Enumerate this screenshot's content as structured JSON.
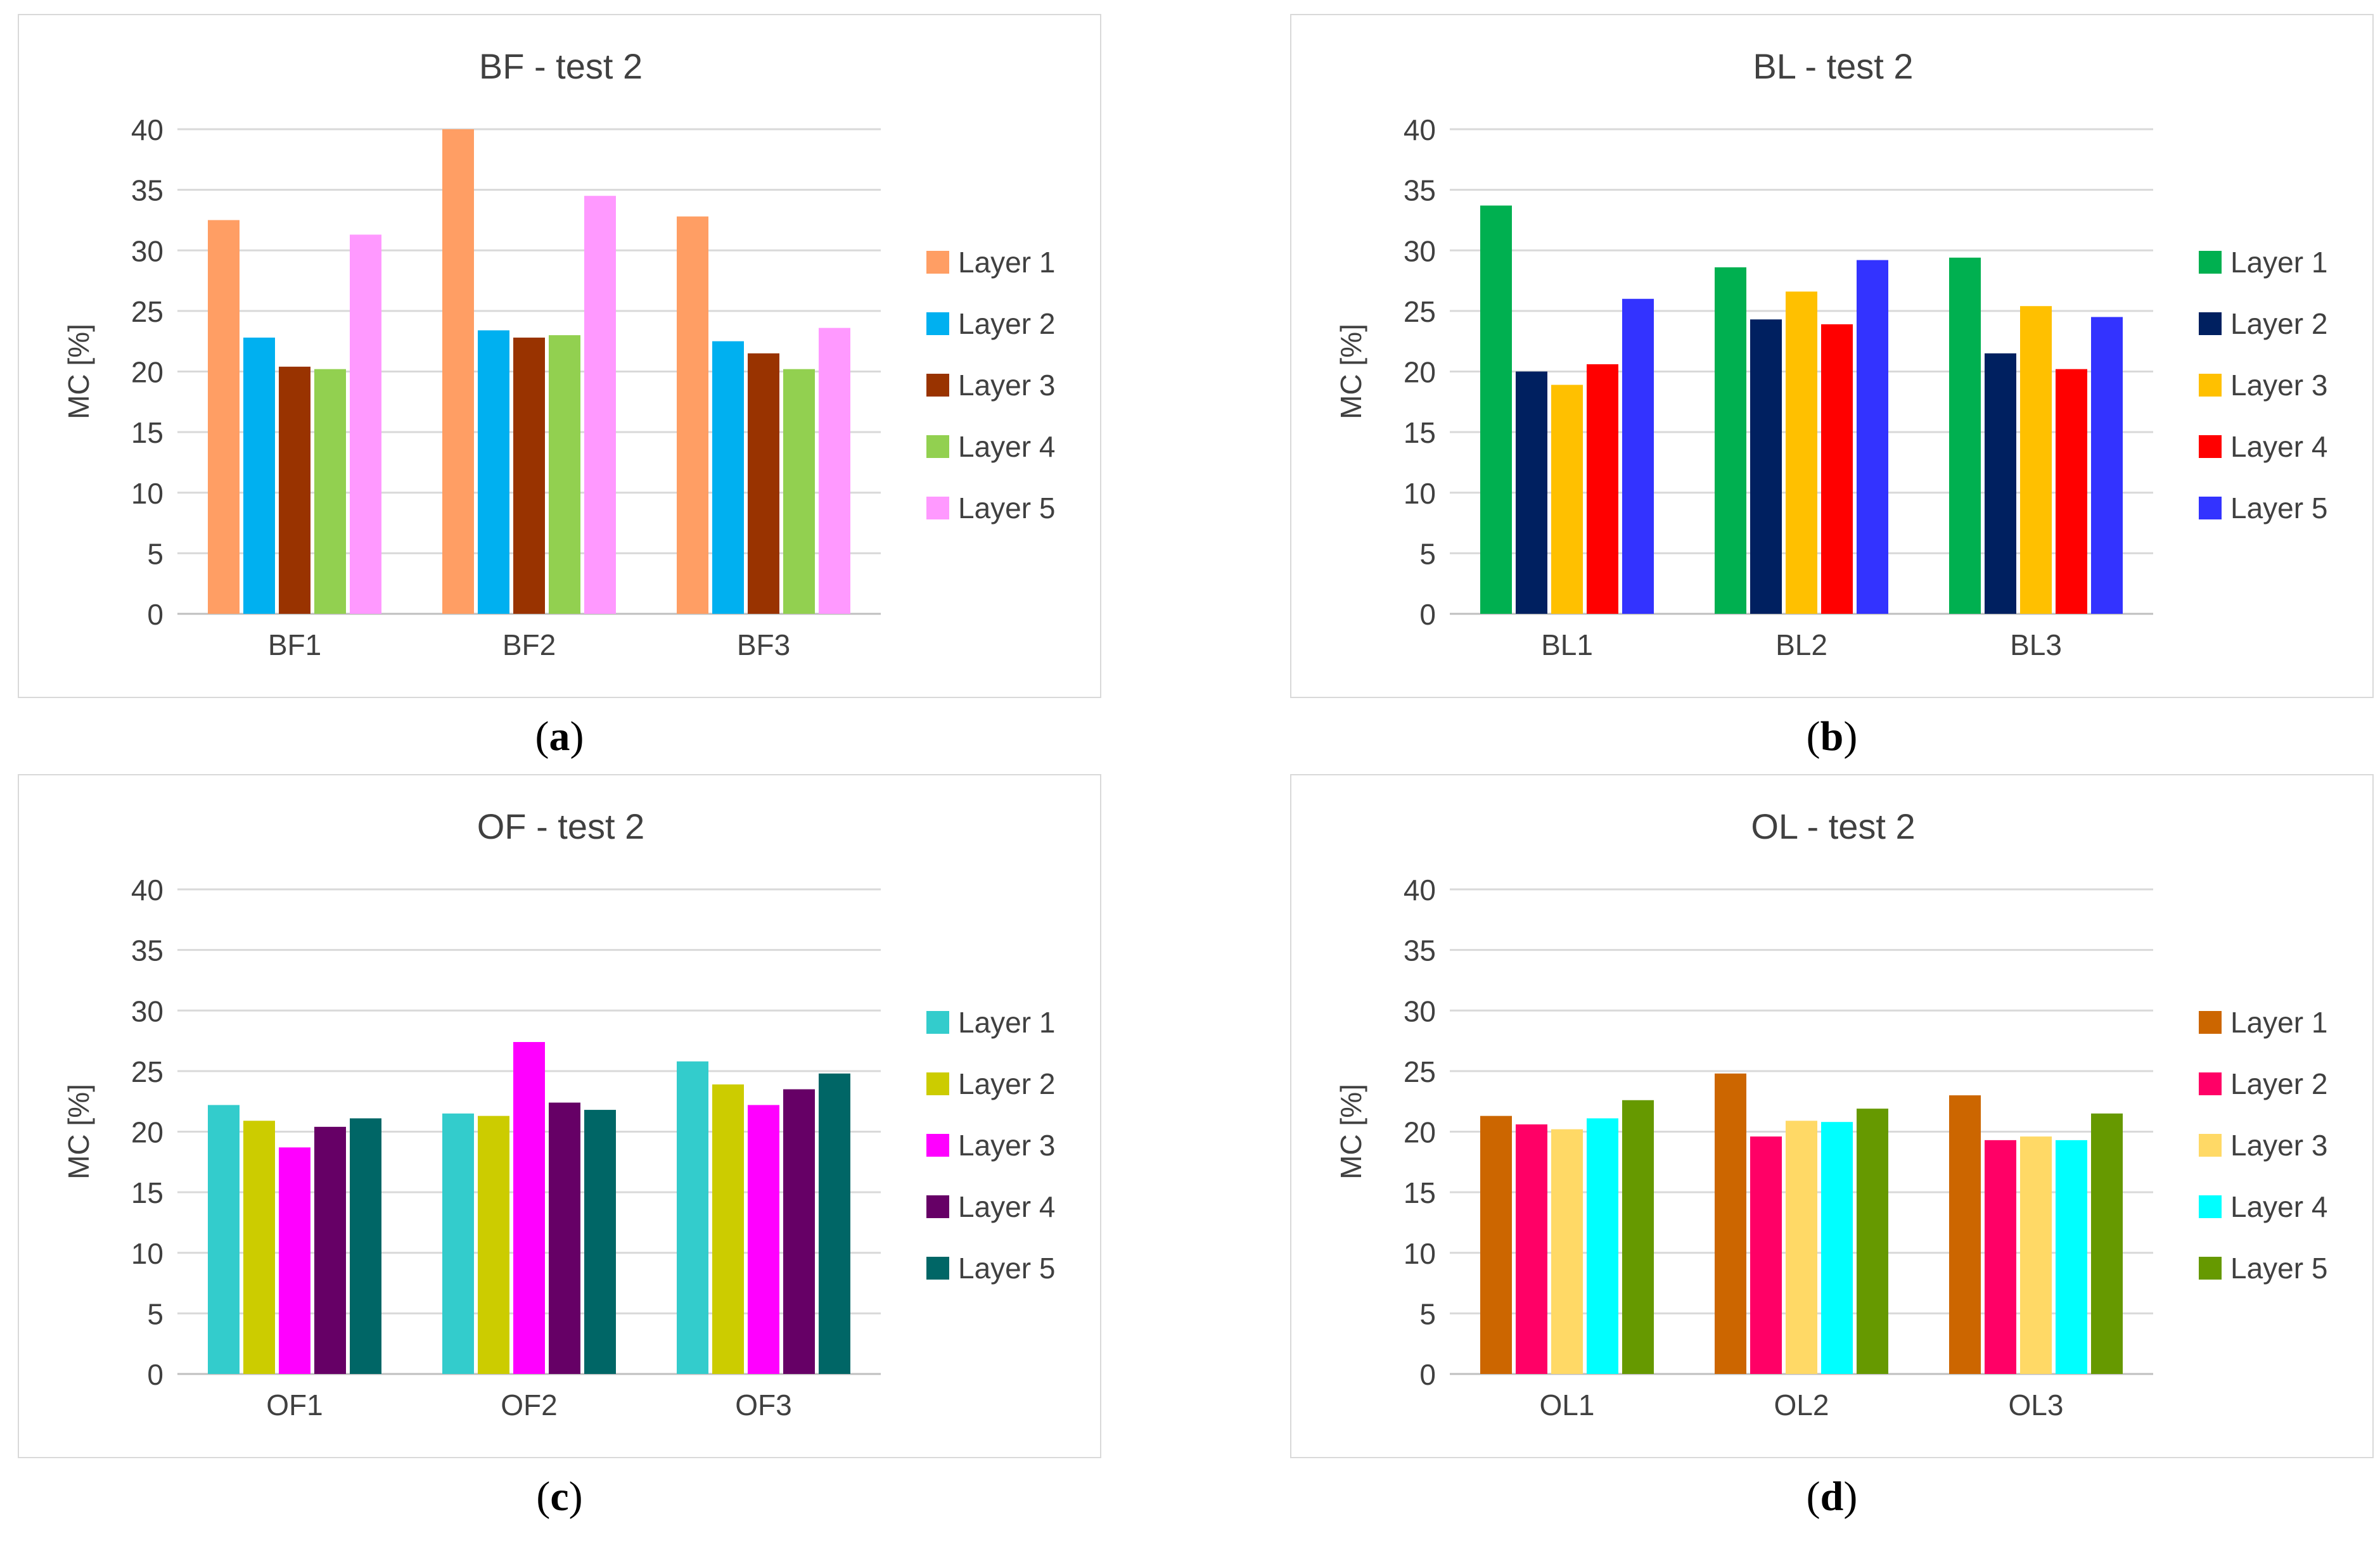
{
  "chart_data": [
    {
      "type": "bar",
      "title": "BF - test 2",
      "ylabel": "MC [%]",
      "xlabel": "",
      "ylim": [
        0,
        40
      ],
      "yticks": [
        0,
        5,
        10,
        15,
        20,
        25,
        30,
        35,
        40
      ],
      "grid": true,
      "legend_position": "right",
      "categories": [
        "BF1",
        "BF2",
        "BF3"
      ],
      "series": [
        {
          "name": "Layer 1",
          "color": "#ff9e64",
          "values": [
            32.5,
            40.0,
            32.8
          ]
        },
        {
          "name": "Layer 2",
          "color": "#00b0f0",
          "values": [
            22.8,
            23.4,
            22.5
          ]
        },
        {
          "name": "Layer 3",
          "color": "#993300",
          "values": [
            20.4,
            22.8,
            21.5
          ]
        },
        {
          "name": "Layer 4",
          "color": "#92d050",
          "values": [
            20.2,
            23.0,
            20.2
          ]
        },
        {
          "name": "Layer 5",
          "color": "#ff99ff",
          "values": [
            31.3,
            34.5,
            23.6
          ]
        }
      ]
    },
    {
      "type": "bar",
      "title": "BL - test 2",
      "ylabel": "MC [%]",
      "xlabel": "",
      "ylim": [
        0,
        40
      ],
      "yticks": [
        0,
        5,
        10,
        15,
        20,
        25,
        30,
        35,
        40
      ],
      "grid": true,
      "legend_position": "right",
      "categories": [
        "BL1",
        "BL2",
        "BL3"
      ],
      "series": [
        {
          "name": "Layer 1",
          "color": "#00b050",
          "values": [
            33.7,
            28.6,
            29.4
          ]
        },
        {
          "name": "Layer 2",
          "color": "#002060",
          "values": [
            20.0,
            24.3,
            21.5
          ]
        },
        {
          "name": "Layer 3",
          "color": "#ffc000",
          "values": [
            18.9,
            26.6,
            25.4
          ]
        },
        {
          "name": "Layer 4",
          "color": "#ff0000",
          "values": [
            20.6,
            23.9,
            20.2
          ]
        },
        {
          "name": "Layer 5",
          "color": "#3333ff",
          "values": [
            26.0,
            29.2,
            24.5
          ]
        }
      ]
    },
    {
      "type": "bar",
      "title": "OF - test 2",
      "ylabel": "MC [%]",
      "xlabel": "",
      "ylim": [
        0,
        40
      ],
      "yticks": [
        0,
        5,
        10,
        15,
        20,
        25,
        30,
        35,
        40
      ],
      "grid": true,
      "legend_position": "right",
      "categories": [
        "OF1",
        "OF2",
        "OF3"
      ],
      "series": [
        {
          "name": "Layer 1",
          "color": "#33cccc",
          "values": [
            22.2,
            21.5,
            25.8
          ]
        },
        {
          "name": "Layer 2",
          "color": "#cccc00",
          "values": [
            20.9,
            21.3,
            23.9
          ]
        },
        {
          "name": "Layer 3",
          "color": "#ff00ff",
          "values": [
            18.7,
            27.4,
            22.2
          ]
        },
        {
          "name": "Layer 4",
          "color": "#660066",
          "values": [
            20.4,
            22.4,
            23.5
          ]
        },
        {
          "name": "Layer 5",
          "color": "#006666",
          "values": [
            21.1,
            21.8,
            24.8
          ]
        }
      ]
    },
    {
      "type": "bar",
      "title": "OL - test 2",
      "ylabel": "MC [%]",
      "xlabel": "",
      "ylim": [
        0,
        40
      ],
      "yticks": [
        0,
        5,
        10,
        15,
        20,
        25,
        30,
        35,
        40
      ],
      "grid": true,
      "legend_position": "right",
      "categories": [
        "OL1",
        "OL2",
        "OL3"
      ],
      "series": [
        {
          "name": "Layer 1",
          "color": "#cc6600",
          "values": [
            21.3,
            24.8,
            23.0
          ]
        },
        {
          "name": "Layer 2",
          "color": "#ff0066",
          "values": [
            20.6,
            19.6,
            19.3
          ]
        },
        {
          "name": "Layer 3",
          "color": "#ffd966",
          "values": [
            20.2,
            20.9,
            19.6
          ]
        },
        {
          "name": "Layer 4",
          "color": "#00ffff",
          "values": [
            21.1,
            20.8,
            19.3
          ]
        },
        {
          "name": "Layer 5",
          "color": "#669900",
          "values": [
            22.6,
            21.9,
            21.5
          ]
        }
      ]
    }
  ],
  "captions": [
    "a",
    "b",
    "c",
    "d"
  ]
}
